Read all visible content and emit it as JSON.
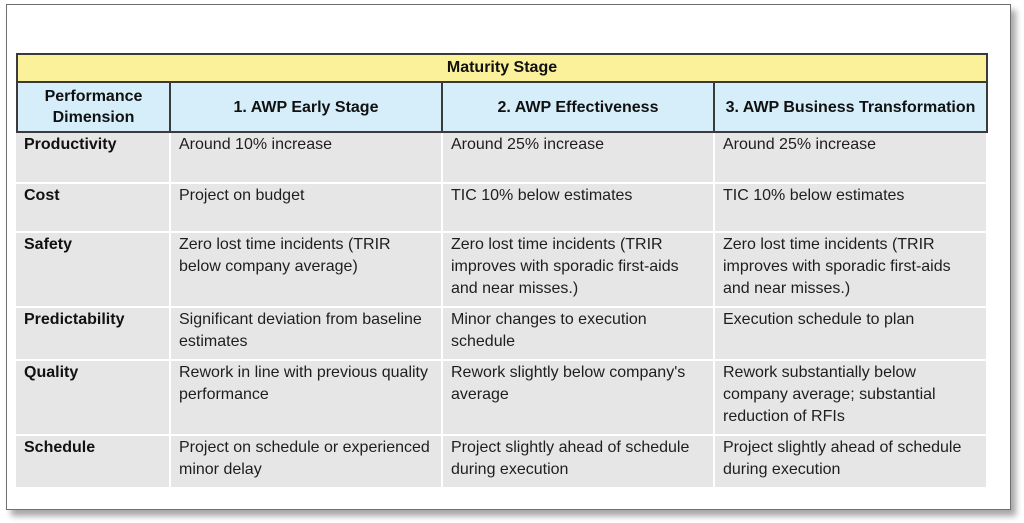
{
  "table": {
    "group_header": "Maturity Stage",
    "columns": [
      "Performance Dimension",
      "1. AWP Early Stage",
      "2. AWP Effectiveness",
      "3. AWP Business Transformation"
    ],
    "rows": [
      {
        "dimension": "Productivity",
        "early": "Around 10% increase",
        "effectiveness": "Around 25% increase",
        "transformation": "Around 25% increase"
      },
      {
        "dimension": "Cost",
        "early": "Project on budget",
        "effectiveness": "TIC 10% below estimates",
        "transformation": "TIC 10% below estimates"
      },
      {
        "dimension": "Safety",
        "early": "Zero lost time incidents (TRIR below company average)",
        "effectiveness": "Zero lost time incidents (TRIR improves with sporadic first-aids and near misses.)",
        "transformation": "Zero lost time incidents (TRIR improves with sporadic first-aids and near misses.)"
      },
      {
        "dimension": "Predictability",
        "early": "Significant deviation from baseline estimates",
        "effectiveness": "Minor changes to execution schedule",
        "transformation": "Execution schedule to plan"
      },
      {
        "dimension": "Quality",
        "early": "Rework in line with previous quality performance",
        "effectiveness": "Rework slightly below company's average",
        "transformation": "Rework substantially below company average; substantial reduction of RFIs"
      },
      {
        "dimension": "Schedule",
        "early": "Project on schedule or experienced minor delay",
        "effectiveness": "Project slightly ahead of schedule during execution",
        "transformation": "Project slightly ahead of schedule during execution"
      }
    ]
  },
  "colors": {
    "group_header_bg": "#fbf19a",
    "column_header_bg": "#d5eefa",
    "cell_bg": "#e6e6e6"
  }
}
